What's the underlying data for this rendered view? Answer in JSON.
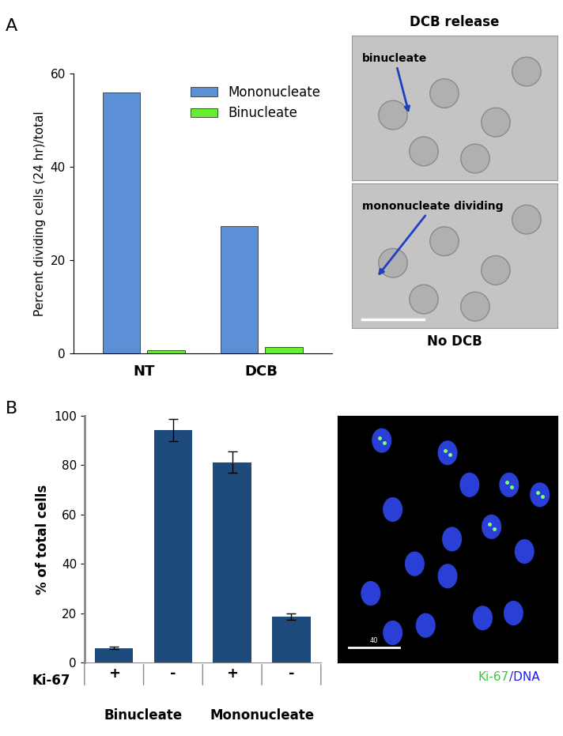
{
  "chart_data": [
    {
      "panel": "A",
      "type": "bar",
      "categories": [
        "NT",
        "DCB"
      ],
      "series": [
        {
          "name": "Mononucleate",
          "color": "#5b8fd6",
          "values": [
            56,
            27.3
          ]
        },
        {
          "name": "Binucleate",
          "color": "#66ee33",
          "values": [
            0.7,
            1.3
          ]
        }
      ],
      "ylabel": "Percent dividing cells (24 hr)/total",
      "ylim": [
        0,
        60
      ],
      "yticks": [
        0,
        20,
        40,
        60
      ],
      "legend": "upper right",
      "images": [
        {
          "title": "DCB release",
          "annotation": "binucleate"
        },
        {
          "annotation": "mononucleate dividing",
          "caption": "No DCB"
        }
      ]
    },
    {
      "panel": "B",
      "type": "bar",
      "categories": [
        "+",
        "-",
        "+",
        "-"
      ],
      "values": [
        5.8,
        94.2,
        81.2,
        18.6
      ],
      "errors": [
        0.5,
        4.5,
        4.3,
        1.2
      ],
      "color": "#1f4a7c",
      "xlabel": "Ki-67",
      "group_labels": [
        "Binucleate",
        "Mononucleate"
      ],
      "ylabel": "% of total cells",
      "ylim": [
        0,
        100
      ],
      "yticks": [
        0,
        20,
        40,
        60,
        80,
        100
      ],
      "images": [
        {
          "scale_label": "40",
          "caption_parts": [
            {
              "text": "Ki-67",
              "color": "#33cc33"
            },
            {
              "text": "/DNA",
              "color": "#1a1aff"
            }
          ]
        }
      ]
    }
  ]
}
